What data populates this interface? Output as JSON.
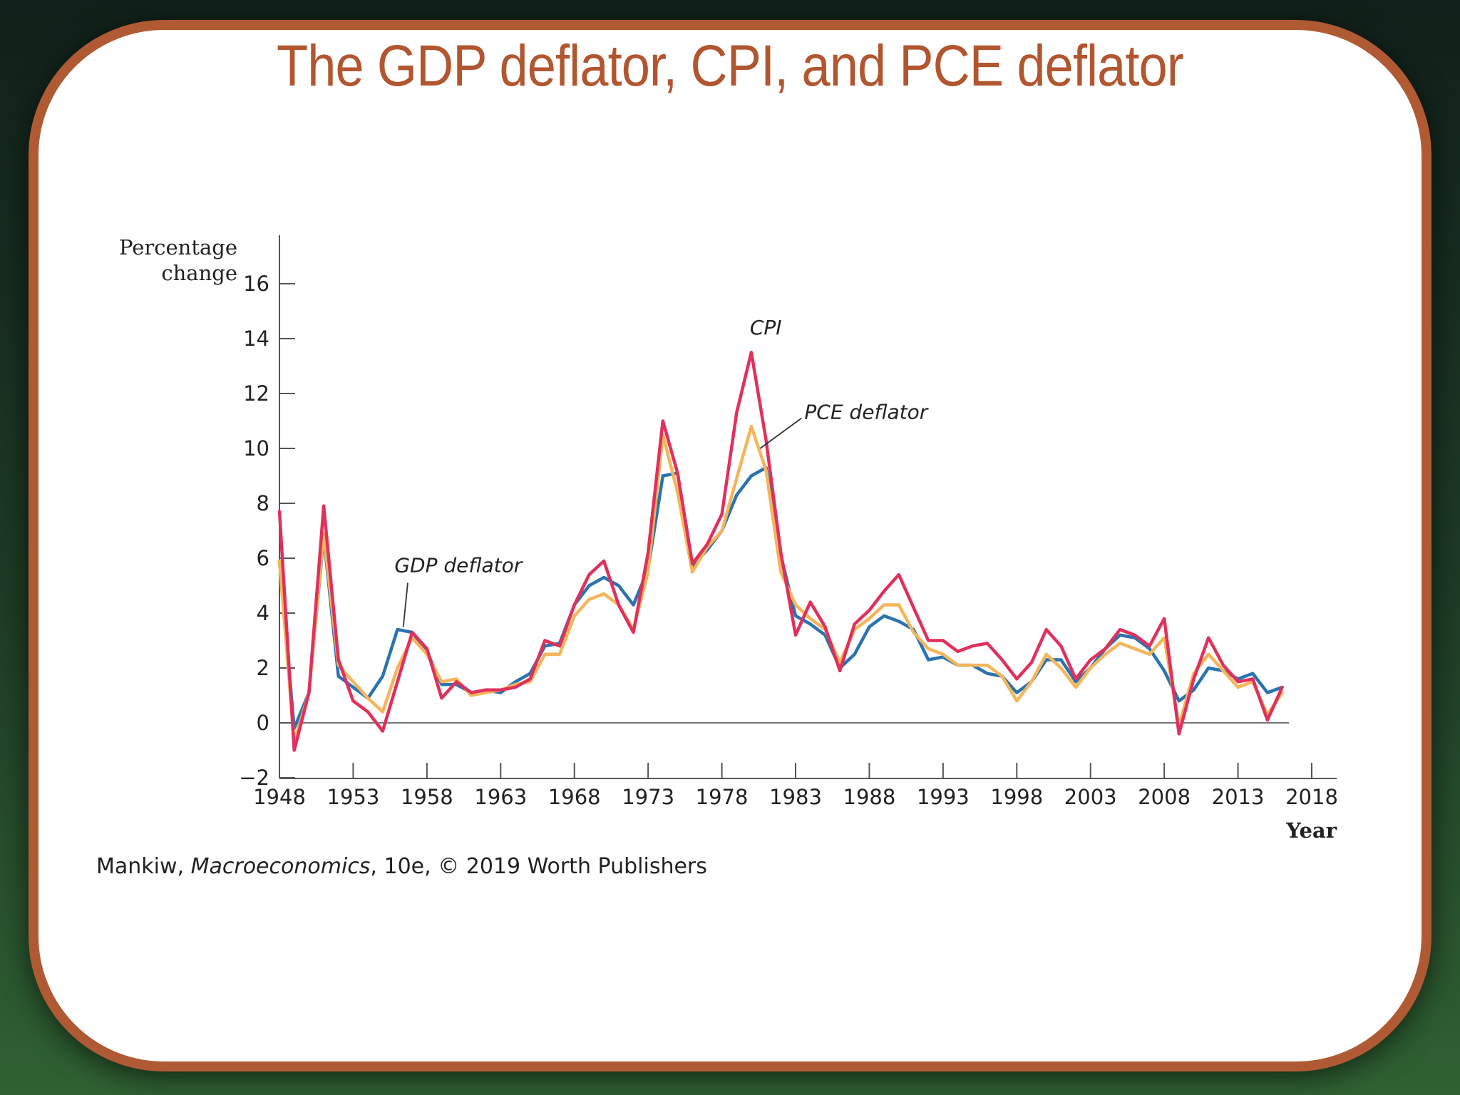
{
  "slide": {
    "title": "The GDP deflator, CPI, and PCE deflator",
    "credit": {
      "author": "Mankiw, ",
      "book": "Macroeconomics",
      "rest": ", 10e, © 2019 Worth Publishers"
    },
    "colors": {
      "frame": "#b05a34",
      "title": "#b25630"
    }
  },
  "chart_data": {
    "type": "line",
    "ylabel": [
      "Percentage",
      "change"
    ],
    "xlabel": "Year",
    "xlim": [
      1948,
      2018
    ],
    "ylim": [
      -2,
      17
    ],
    "xticks": [
      1948,
      1953,
      1958,
      1963,
      1968,
      1973,
      1978,
      1983,
      1988,
      1993,
      1998,
      2003,
      2008,
      2013,
      2018
    ],
    "yticks": [
      -2,
      0,
      2,
      4,
      6,
      8,
      10,
      12,
      14,
      16
    ],
    "grid": false,
    "x": [
      1948,
      1949,
      1950,
      1951,
      1952,
      1953,
      1954,
      1955,
      1956,
      1957,
      1958,
      1959,
      1960,
      1961,
      1962,
      1963,
      1964,
      1965,
      1966,
      1967,
      1968,
      1969,
      1970,
      1971,
      1972,
      1973,
      1974,
      1975,
      1976,
      1977,
      1978,
      1979,
      1980,
      1981,
      1982,
      1983,
      1984,
      1985,
      1986,
      1987,
      1988,
      1989,
      1990,
      1991,
      1992,
      1993,
      1994,
      1995,
      1996,
      1997,
      1998,
      1999,
      2000,
      2001,
      2002,
      2003,
      2004,
      2005,
      2006,
      2007,
      2008,
      2009,
      2010,
      2011,
      2012,
      2013,
      2014,
      2015,
      2016
    ],
    "series": [
      {
        "name": "GDP deflator",
        "color": "#2a73b0",
        "values": [
          5.9,
          -0.2,
          1.1,
          6.8,
          1.7,
          1.3,
          0.9,
          1.7,
          3.4,
          3.3,
          2.6,
          1.4,
          1.4,
          1.1,
          1.2,
          1.1,
          1.5,
          1.8,
          2.8,
          2.9,
          4.3,
          5.0,
          5.3,
          5.0,
          4.3,
          5.6,
          9.0,
          9.1,
          5.7,
          6.3,
          7.0,
          8.3,
          9.0,
          9.3,
          6.1,
          3.9,
          3.6,
          3.2,
          2.0,
          2.5,
          3.5,
          3.9,
          3.7,
          3.4,
          2.3,
          2.4,
          2.1,
          2.1,
          1.8,
          1.7,
          1.1,
          1.5,
          2.3,
          2.3,
          1.5,
          2.0,
          2.7,
          3.2,
          3.1,
          2.7,
          1.9,
          0.8,
          1.2,
          2.0,
          1.9,
          1.6,
          1.8,
          1.1,
          1.3
        ]
      },
      {
        "name": "CPI",
        "color": "#e0305c",
        "values": [
          7.7,
          -1.0,
          1.1,
          7.9,
          2.3,
          0.8,
          0.4,
          -0.3,
          1.5,
          3.3,
          2.7,
          0.9,
          1.5,
          1.1,
          1.2,
          1.2,
          1.3,
          1.6,
          3.0,
          2.8,
          4.3,
          5.4,
          5.9,
          4.3,
          3.3,
          6.2,
          11.0,
          9.1,
          5.8,
          6.5,
          7.6,
          11.3,
          13.5,
          10.3,
          6.2,
          3.2,
          4.4,
          3.5,
          1.9,
          3.6,
          4.1,
          4.8,
          5.4,
          4.2,
          3.0,
          3.0,
          2.6,
          2.8,
          2.9,
          2.3,
          1.6,
          2.2,
          3.4,
          2.8,
          1.6,
          2.3,
          2.7,
          3.4,
          3.2,
          2.8,
          3.8,
          -0.4,
          1.6,
          3.1,
          2.1,
          1.5,
          1.6,
          0.1,
          1.3
        ]
      },
      {
        "name": "PCE deflator",
        "color": "#f5b55a",
        "values": [
          5.9,
          -0.7,
          1.1,
          6.9,
          2.1,
          1.5,
          0.9,
          0.4,
          2.0,
          3.1,
          2.5,
          1.5,
          1.6,
          1.0,
          1.1,
          1.2,
          1.4,
          1.5,
          2.5,
          2.5,
          3.9,
          4.5,
          4.7,
          4.3,
          3.4,
          5.5,
          10.5,
          8.4,
          5.5,
          6.4,
          7.0,
          8.9,
          10.8,
          9.2,
          5.5,
          4.3,
          3.8,
          3.4,
          2.2,
          3.4,
          3.8,
          4.3,
          4.3,
          3.3,
          2.7,
          2.5,
          2.1,
          2.1,
          2.1,
          1.7,
          0.8,
          1.5,
          2.5,
          2.0,
          1.3,
          2.0,
          2.5,
          2.9,
          2.7,
          2.5,
          3.1,
          -0.1,
          1.8,
          2.5,
          1.9,
          1.3,
          1.5,
          0.3,
          1.1
        ]
      }
    ],
    "annotations": [
      {
        "text": "CPI",
        "x": 1979.9,
        "y": 14.15
      },
      {
        "text": "PCE deflator",
        "x": 1983.6,
        "y": 11.08,
        "pointer_to": [
          1980.6,
          10.0
        ],
        "pointer_from": [
          1983.4,
          11.1
        ]
      },
      {
        "text": "GDP deflator",
        "x": 1955.8,
        "y": 5.5,
        "pointer_to": [
          1956.4,
          3.5
        ],
        "pointer_from": [
          1956.7,
          5.1
        ]
      }
    ]
  }
}
